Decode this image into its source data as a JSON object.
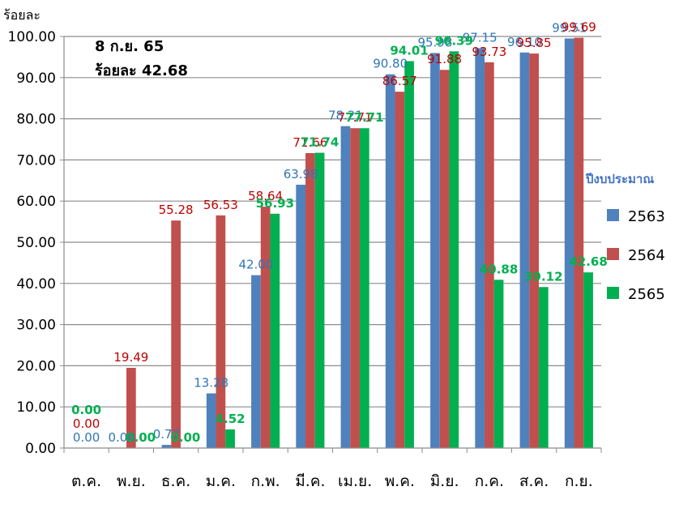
{
  "chart_data": {
    "type": "bar",
    "ylabel": "ร้อยละ",
    "ylim": [
      0,
      100
    ],
    "yticks": [
      "0.00",
      "10.00",
      "20.00",
      "30.00",
      "40.00",
      "50.00",
      "60.00",
      "70.00",
      "80.00",
      "90.00",
      "100.00"
    ],
    "categories": [
      "ต.ค.",
      "พ.ย.",
      "ธ.ค.",
      "ม.ค.",
      "ก.พ.",
      "มี.ค.",
      "เม.ย.",
      "พ.ค.",
      "มิ.ย.",
      "ก.ค.",
      "ส.ค.",
      "ก.ย."
    ],
    "legend_title": "ปีงบประมาณ",
    "legend_position": "right",
    "grid": true,
    "annotation": [
      "8 ก.ย. 65",
      "ร้อยละ 42.68"
    ],
    "series": [
      {
        "name": "2563",
        "color": "#4f81bd",
        "label_color": "#2e75b6",
        "values": [
          0.0,
          0.0,
          0.77,
          13.28,
          42.0,
          63.98,
          78.21,
          90.8,
          95.98,
          97.15,
          96.1,
          99.51
        ],
        "labels": [
          "0.00",
          "0.00",
          "0.77",
          "13.28",
          "42.00",
          "63.98",
          "78.21",
          "90.80",
          "95.98",
          "97.15",
          "96.10",
          "99.51"
        ]
      },
      {
        "name": "2564",
        "color": "#c0504d",
        "label_color": "#c00000",
        "values": [
          0.0,
          19.49,
          55.28,
          56.53,
          58.64,
          71.66,
          77.71,
          86.57,
          91.88,
          93.73,
          95.85,
          99.69
        ],
        "labels": [
          "0.00",
          "19.49",
          "55.28",
          "56.53",
          "58.64",
          "71.66",
          "77.71",
          "86.57",
          "91.88",
          "93.73",
          "95.85",
          "99.69"
        ]
      },
      {
        "name": "2565",
        "color": "#00b050",
        "label_color": "#00b050",
        "values": [
          0.0,
          0.0,
          0.0,
          4.52,
          56.93,
          71.74,
          77.71,
          94.01,
          96.39,
          40.88,
          39.12,
          42.68
        ],
        "labels": [
          "0.00",
          "0.00",
          "0.00",
          "4.52",
          "56.93",
          "71.74",
          "77.71",
          "94.01",
          "96.39",
          "40.88",
          "39.12",
          "42.68"
        ]
      }
    ]
  }
}
